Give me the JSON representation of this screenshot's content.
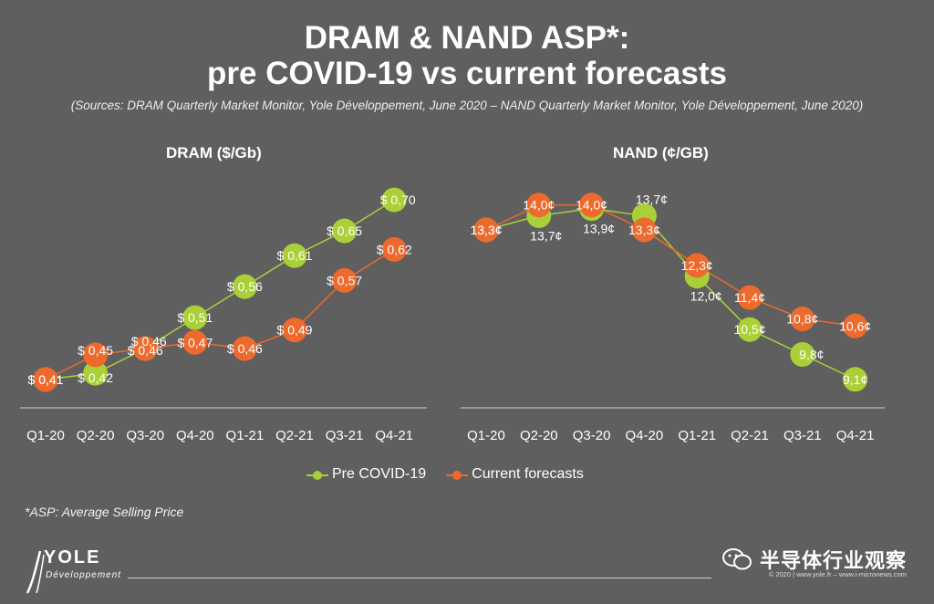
{
  "title_line1": "DRAM & NAND ASP*:",
  "title_line2": "pre COVID-19 vs current forecasts",
  "sources": "(Sources: DRAM Quarterly Market Monitor, Yole Développement, June 2020 – NAND Quarterly Market Monitor, Yole Développement, June 2020)",
  "footnote": "*ASP: Average Selling Price",
  "logo": {
    "name": "YOLE",
    "sub": "Développement"
  },
  "watermark": "半导体行业观察",
  "copyright": "© 2020 | www.yole.fr – www.i-micronews.com",
  "colors": {
    "background": "#5f5f5f",
    "pre_covid": "#aacf37",
    "current": "#ee6a2c",
    "axis": "#d0d0d0"
  },
  "chart_data": [
    {
      "type": "line",
      "title": "DRAM ($/Gb)",
      "categories": [
        "Q1-20",
        "Q2-20",
        "Q3-20",
        "Q4-20",
        "Q1-21",
        "Q2-21",
        "Q3-21",
        "Q4-21"
      ],
      "series": [
        {
          "name": "Pre COVID-19",
          "values": [
            0.41,
            0.42,
            0.46,
            0.51,
            0.56,
            0.61,
            0.65,
            0.7
          ],
          "labels": [
            "$ 0,41",
            "$ 0,42",
            "$ 0,46",
            "$ 0,51",
            "$ 0,56",
            "$ 0,61",
            "$ 0,65",
            "$ 0,70"
          ],
          "color": "#aacf37"
        },
        {
          "name": "Current forecasts",
          "values": [
            0.41,
            0.45,
            0.46,
            0.47,
            0.46,
            0.49,
            0.57,
            0.62
          ],
          "labels": [
            "$ 0,41",
            "$ 0,45",
            "$ 0,46",
            "$ 0,47",
            "$ 0,46",
            "$ 0,49",
            "$ 0,57",
            "$ 0,62"
          ],
          "color": "#ee6a2c"
        }
      ],
      "legend": "bottom-center"
    },
    {
      "type": "line",
      "title": "NAND (¢/GB)",
      "categories": [
        "Q1-20",
        "Q2-20",
        "Q3-20",
        "Q4-20",
        "Q1-21",
        "Q2-21",
        "Q3-21",
        "Q4-21"
      ],
      "series": [
        {
          "name": "Pre COVID-19",
          "values": [
            13.3,
            13.7,
            13.9,
            13.7,
            12.0,
            10.5,
            9.8,
            9.1
          ],
          "labels": [
            "13,3¢",
            "13,7¢",
            "13,9¢",
            "13,7¢",
            "12,0¢",
            "10,5¢",
            "9,8¢",
            "9,1¢"
          ],
          "color": "#aacf37"
        },
        {
          "name": "Current forecasts",
          "values": [
            13.3,
            14.0,
            14.0,
            13.3,
            12.3,
            11.4,
            10.8,
            10.6
          ],
          "labels": [
            "13,3¢",
            "14,0¢",
            "14,0¢",
            "13,3¢",
            "12,3¢",
            "11,4¢",
            "10,8¢",
            "10,6¢"
          ],
          "color": "#ee6a2c"
        }
      ],
      "legend": "bottom-center"
    }
  ]
}
